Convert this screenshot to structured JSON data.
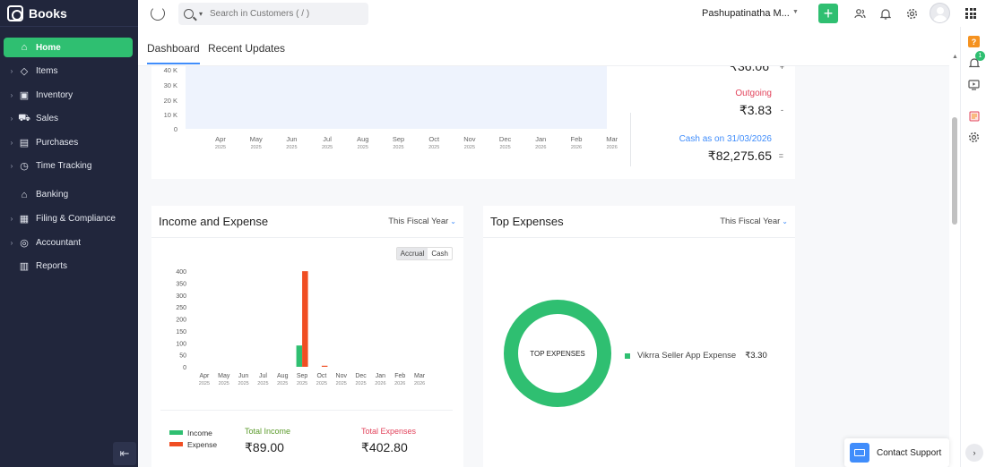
{
  "brand": {
    "name": "Books"
  },
  "sidebar": {
    "items": [
      {
        "label": "Home",
        "icon": "home-icon",
        "active": true,
        "chevron": false
      },
      {
        "label": "Items",
        "icon": "basket-icon",
        "active": false,
        "chevron": true
      },
      {
        "label": "Inventory",
        "icon": "box-icon",
        "active": false,
        "chevron": true
      },
      {
        "label": "Sales",
        "icon": "cart-icon",
        "active": false,
        "chevron": true
      },
      {
        "label": "Purchases",
        "icon": "bag-icon",
        "active": false,
        "chevron": true
      },
      {
        "label": "Time Tracking",
        "icon": "clock-icon",
        "active": false,
        "chevron": true
      },
      {
        "label": "Banking",
        "icon": "bank-icon",
        "active": false,
        "chevron": false
      },
      {
        "label": "Filing & Compliance",
        "icon": "document-icon",
        "active": false,
        "chevron": true
      },
      {
        "label": "Accountant",
        "icon": "user-icon",
        "active": false,
        "chevron": true
      },
      {
        "label": "Reports",
        "icon": "bar-chart-icon",
        "active": false,
        "chevron": false
      }
    ]
  },
  "topbar": {
    "search_placeholder": "Search in Customers ( / )",
    "org_name": "Pashupatinatha M...",
    "plus_label": "+"
  },
  "tabs": [
    {
      "label": "Dashboard",
      "active": true
    },
    {
      "label": "Recent Updates",
      "active": false
    }
  ],
  "cashflow": {
    "partial_top_value": "₹36.06",
    "outgoing_label": "Outgoing",
    "outgoing_value": "₹3.83",
    "outgoing_sign": "-",
    "cash_as_on_label": "Cash as on 31/03/2026",
    "cash_as_on_value": "₹82,275.65",
    "cash_sign": "="
  },
  "income_expense": {
    "title": "Income and Expense",
    "period": "This Fiscal Year",
    "toggle": [
      "Accrual",
      "Cash"
    ],
    "legend_income": "Income",
    "legend_expense": "Expense",
    "total_income_label": "Total Income",
    "total_income_value": "₹89.00",
    "total_expenses_label": "Total Expenses",
    "total_expenses_value": "₹402.80"
  },
  "top_expenses": {
    "title": "Top Expenses",
    "period": "This Fiscal Year",
    "donut_label": "TOP EXPENSES",
    "entries": [
      {
        "name": "Vikrra Seller App Expense",
        "amount": "₹3.30"
      }
    ]
  },
  "support": {
    "label": "Contact Support"
  },
  "colors": {
    "accent": "#2fbf71",
    "income": "#2fbf71",
    "expense": "#f04e23",
    "link": "#408dfb",
    "outgoing": "#e2445c"
  },
  "chart_data": [
    {
      "type": "area",
      "title": "",
      "categories": [
        "Apr",
        "May",
        "Jun",
        "Jul",
        "Aug",
        "Sep",
        "Oct",
        "Nov",
        "Dec",
        "Jan",
        "Feb",
        "Mar"
      ],
      "years": [
        "2025",
        "2025",
        "2025",
        "2025",
        "2025",
        "2025",
        "2025",
        "2025",
        "2025",
        "2026",
        "2026",
        "2026"
      ],
      "yticks": [
        "40 K",
        "30 K",
        "20 K",
        "10 K",
        "0"
      ],
      "ylim": [
        0,
        40000
      ]
    },
    {
      "type": "bar",
      "title": "Income and Expense",
      "categories": [
        "Apr",
        "May",
        "Jun",
        "Jul",
        "Aug",
        "Sep",
        "Oct",
        "Nov",
        "Dec",
        "Jan",
        "Feb",
        "Mar"
      ],
      "years": [
        "2025",
        "2025",
        "2025",
        "2025",
        "2025",
        "2025",
        "2025",
        "2025",
        "2025",
        "2026",
        "2026",
        "2026"
      ],
      "series": [
        {
          "name": "Income",
          "color": "#2fbf71",
          "values": [
            0,
            0,
            0,
            0,
            0,
            89,
            0,
            0,
            0,
            0,
            0,
            0
          ]
        },
        {
          "name": "Expense",
          "color": "#f04e23",
          "values": [
            0,
            0,
            0,
            0,
            0,
            399.5,
            3.3,
            0,
            0,
            0,
            0,
            0
          ]
        }
      ],
      "yticks": [
        400,
        350,
        300,
        250,
        200,
        150,
        100,
        50,
        0
      ],
      "ylim": [
        0,
        400
      ]
    },
    {
      "type": "pie",
      "title": "TOP EXPENSES",
      "labels": [
        "Vikrra Seller App Expense"
      ],
      "values": [
        3.3
      ]
    }
  ]
}
